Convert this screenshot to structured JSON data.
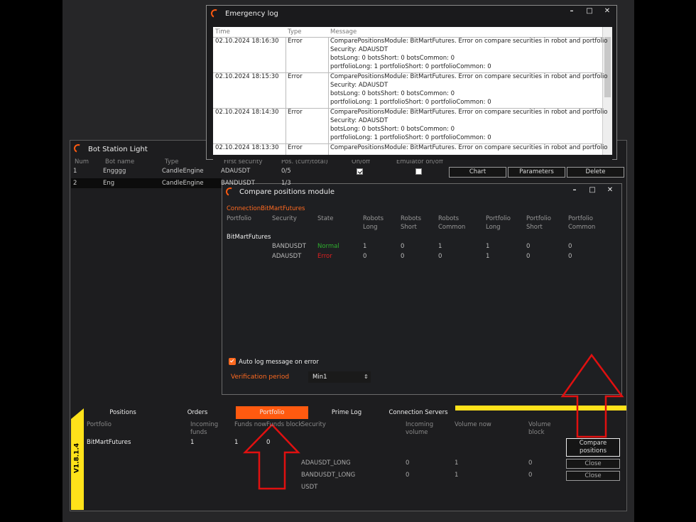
{
  "bot_station": {
    "title": "Bot Station Light",
    "columns": [
      "Num",
      "Bot name",
      "Type",
      "First security",
      "Pos. (curr/total)",
      "On/off",
      "Emulator on/off"
    ],
    "rows": [
      [
        "1",
        "Engggg",
        "CandleEngine",
        "ADAUSDT",
        "0/5"
      ],
      [
        "2",
        "Eng",
        "CandleEngine",
        "BANDUSDT",
        "1/3"
      ]
    ],
    "buttons": [
      "Chart",
      "Parameters",
      "Delete"
    ],
    "tabs": [
      "Positions",
      "Orders",
      "Portfolio",
      "Prime Log",
      "Connection Servers"
    ],
    "version": "V1.8.1.4",
    "portfolio_columns": [
      "Portfolio",
      "Incoming funds",
      "Funds now",
      "Funds block",
      "Security",
      "Incoming volume",
      "Volume now",
      "Volume block"
    ],
    "portfolio_rows": [
      [
        "BitMartFutures",
        1,
        1,
        0
      ]
    ],
    "security_rows": [
      [
        "ADAUSDT_LONG",
        0,
        1,
        0
      ],
      [
        "BANDUSDT_LONG",
        0,
        1,
        0
      ],
      [
        "USDT"
      ]
    ],
    "compare_button": "Compare positions",
    "close_buttons": [
      "Close",
      "Close"
    ]
  },
  "emergency_log": {
    "title": "Emergency log",
    "columns": [
      "Time",
      "Type",
      "Message"
    ],
    "rows": [
      {
        "time": "02.10.2024 18:16:30",
        "type": "Error",
        "message": [
          "ComparePositionsModule: BitMartFutures. Error on compare securities in robot and portfolio",
          "Security: ADAUSDT",
          "botsLong: 0 botsShort: 0 botsCommon: 0",
          "portfolioLong: 1 portfolioShort: 0 portfolioCommon: 0"
        ]
      },
      {
        "time": "02.10.2024 18:15:30",
        "type": "Error",
        "message": [
          "ComparePositionsModule: BitMartFutures. Error on compare securities in robot and portfolio",
          "Security: ADAUSDT",
          "botsLong: 0 botsShort: 0 botsCommon: 0",
          "portfolioLong: 1 portfolioShort: 0 portfolioCommon: 0"
        ]
      },
      {
        "time": "02.10.2024 18:14:30",
        "type": "Error",
        "message": [
          "ComparePositionsModule: BitMartFutures. Error on compare securities in robot and portfolio",
          "Security: ADAUSDT",
          "botsLong: 0 botsShort: 0 botsCommon: 0",
          "portfolioLong: 1 portfolioShort: 0 portfolioCommon: 0"
        ]
      },
      {
        "time": "02.10.2024 18:13:30",
        "type": "Error",
        "message": [
          "ComparePositionsModule: BitMartFutures. Error on compare securities in robot and portfolio"
        ]
      }
    ]
  },
  "compare_module": {
    "title": "Compare positions module",
    "connection": "ConnectionBitMartFutures",
    "columns": [
      [
        "Portfolio"
      ],
      [
        "Security"
      ],
      [
        "State"
      ],
      [
        "Robots",
        "Long"
      ],
      [
        "Robots",
        "Short"
      ],
      [
        "Robots",
        "Common"
      ],
      [
        "Portfolio",
        "Long"
      ],
      [
        "Portfolio",
        "Short"
      ],
      [
        "Portfolio",
        "Common"
      ]
    ],
    "portfolio": "BitMartFutures",
    "rows": [
      {
        "security": "BANDUSDT",
        "state": "Normal",
        "values": [
          1,
          0,
          1,
          1,
          0,
          0
        ]
      },
      {
        "security": "ADAUSDT",
        "state": "Error",
        "values": [
          0,
          0,
          0,
          1,
          0,
          0
        ]
      }
    ],
    "auto_log": "Auto log message on error",
    "verification_label": "Verification period",
    "verification_value": "Min1"
  }
}
